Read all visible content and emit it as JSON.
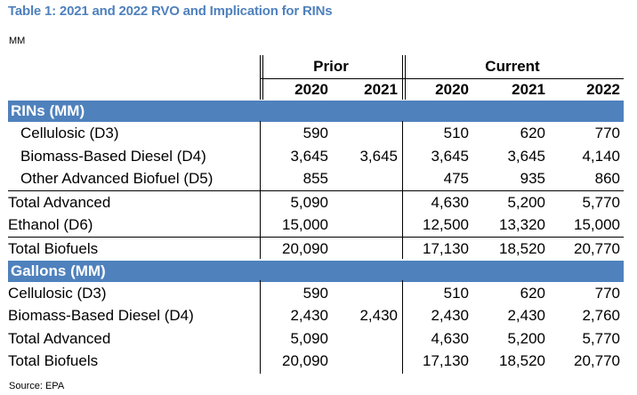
{
  "title": "Table 1: 2021 and 2022 RVO and Implication for RINs",
  "units": "MM",
  "source": "Source: EPA",
  "header": {
    "prior": "Prior",
    "current": "Current",
    "years": [
      "2020",
      "2021",
      "2020",
      "2021",
      "2022"
    ]
  },
  "rins": {
    "section_label": "RINs (MM)",
    "rows": [
      {
        "label": "Cellulosic (D3)",
        "values": [
          "590",
          "",
          "510",
          "620",
          "770"
        ]
      },
      {
        "label": "Biomass-Based Diesel (D4)",
        "values": [
          "3,645",
          "3,645",
          "3,645",
          "3,645",
          "4,140"
        ]
      },
      {
        "label": "Other Advanced Biofuel (D5)",
        "values": [
          "855",
          "",
          "475",
          "935",
          "860"
        ]
      },
      {
        "label": "Total Advanced",
        "values": [
          "5,090",
          "",
          "4,630",
          "5,200",
          "5,770"
        ]
      },
      {
        "label": "Ethanol (D6)",
        "values": [
          "15,000",
          "",
          "12,500",
          "13,320",
          "15,000"
        ]
      },
      {
        "label": "Total Biofuels",
        "values": [
          "20,090",
          "",
          "17,130",
          "18,520",
          "20,770"
        ]
      }
    ]
  },
  "gallons": {
    "section_label": "Gallons (MM)",
    "rows": [
      {
        "label": "Cellulosic (D3)",
        "values": [
          "590",
          "",
          "510",
          "620",
          "770"
        ]
      },
      {
        "label": "Biomass-Based Diesel (D4)",
        "values": [
          "2,430",
          "2,430",
          "2,430",
          "2,430",
          "2,760"
        ]
      },
      {
        "label": "Total Advanced",
        "values": [
          "5,090",
          "",
          "4,630",
          "5,200",
          "5,770"
        ]
      },
      {
        "label": "Total Biofuels",
        "values": [
          "20,090",
          "",
          "17,130",
          "18,520",
          "20,770"
        ]
      }
    ]
  }
}
